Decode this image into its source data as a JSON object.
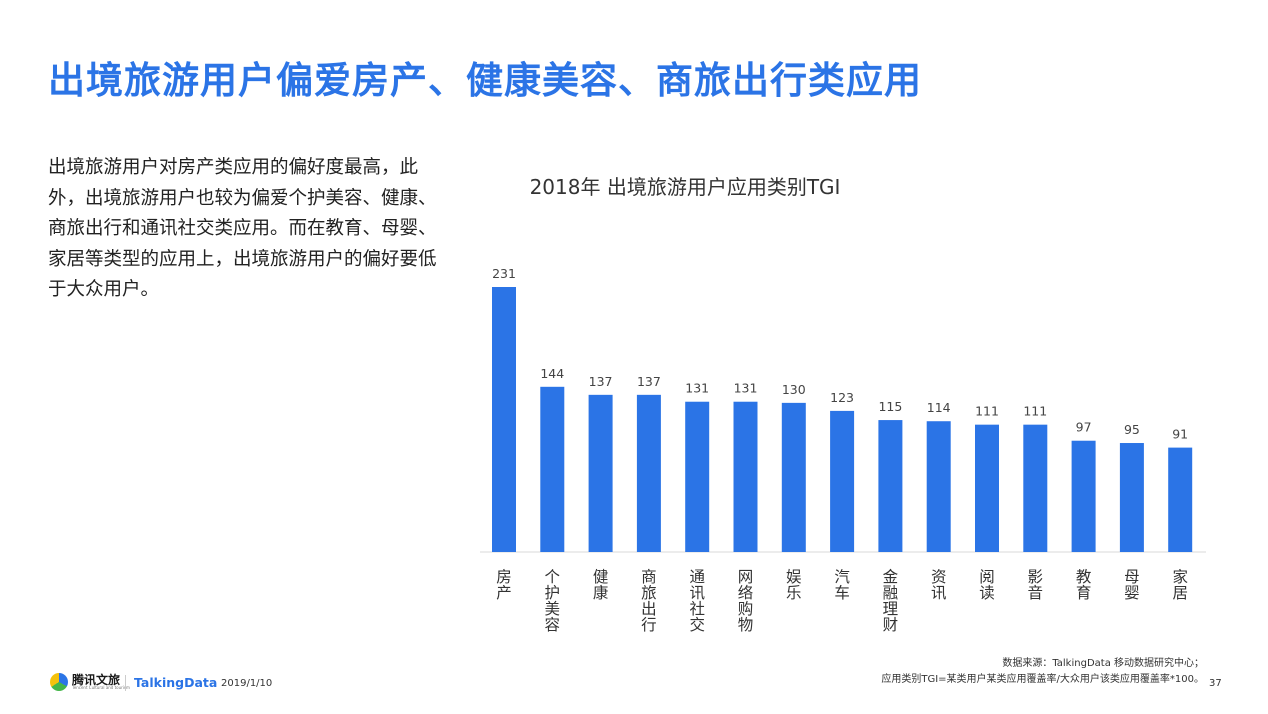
{
  "slide": {
    "title": "出境旅游用户偏爱房产、健康美容、商旅出行类应用",
    "body": "出境旅游用户对房产类应用的偏好度最高，此外，出境旅游用户也较为偏爱个护美容、健康、商旅出行和通讯社交类应用。而在教育、母婴、家居等类型的应用上，出境旅游用户的偏好要低于大众用户。"
  },
  "chart_data": {
    "type": "bar",
    "title": "2018年 出境旅游用户应用类别TGI",
    "categories": [
      "房产",
      "个护美容",
      "健康",
      "商旅出行",
      "通讯社交",
      "网络购物",
      "娱乐",
      "汽车",
      "金融理财",
      "资讯",
      "阅读",
      "影音",
      "教育",
      "母婴",
      "家居"
    ],
    "values": [
      231,
      144,
      137,
      137,
      131,
      131,
      130,
      123,
      115,
      114,
      111,
      111,
      97,
      95,
      91
    ],
    "ylim": [
      0,
      231
    ],
    "grid": false,
    "legend": "none",
    "bar_color": "#2B74E6",
    "axis_color": "#D9D9D9"
  },
  "footer": {
    "logo1": "腾讯文旅",
    "logo1_sub": "Tencent Cultural and tourism",
    "logo2": "TalkingData",
    "date": "2019/1/10",
    "source_line1": "数据来源：TalkingData 移动数据研究中心；",
    "source_line2": "应用类别TGI=某类用户某类应用覆盖率/大众用户该类应用覆盖率*100。",
    "page_number": "37"
  },
  "colors": {
    "accent": "#2B74E6"
  }
}
